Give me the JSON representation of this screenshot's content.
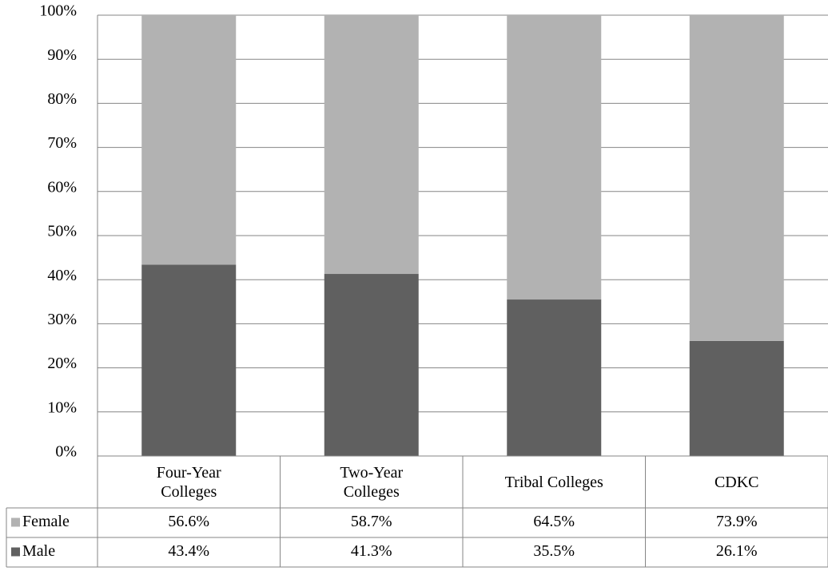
{
  "chart_data": {
    "type": "stacked_bar",
    "categories": [
      "Four-Year\nColleges",
      "Two-Year\nColleges",
      "Tribal Colleges",
      "CDKC"
    ],
    "series": [
      {
        "name": "Female",
        "color": "#b2b2b2",
        "values": [
          56.6,
          58.7,
          64.5,
          73.9
        ],
        "value_labels": [
          "56.6%",
          "58.7%",
          "64.5%",
          "73.9%"
        ]
      },
      {
        "name": "Male",
        "color": "#606060",
        "values": [
          43.4,
          41.3,
          35.5,
          26.1
        ],
        "value_labels": [
          "43.4%",
          "41.3%",
          "35.5%",
          "26.1%"
        ]
      }
    ],
    "ylim": [
      0,
      100
    ],
    "yticks": [
      {
        "value": 0,
        "label": "0%"
      },
      {
        "value": 10,
        "label": "10%"
      },
      {
        "value": 20,
        "label": "20%"
      },
      {
        "value": 30,
        "label": "30%"
      },
      {
        "value": 40,
        "label": "40%"
      },
      {
        "value": 50,
        "label": "50%"
      },
      {
        "value": 60,
        "label": "60%"
      },
      {
        "value": 70,
        "label": "70%"
      },
      {
        "value": 80,
        "label": "80%"
      },
      {
        "value": 90,
        "label": "90%"
      },
      {
        "value": 100,
        "label": "100%"
      }
    ],
    "grid": true,
    "data_table": true
  }
}
